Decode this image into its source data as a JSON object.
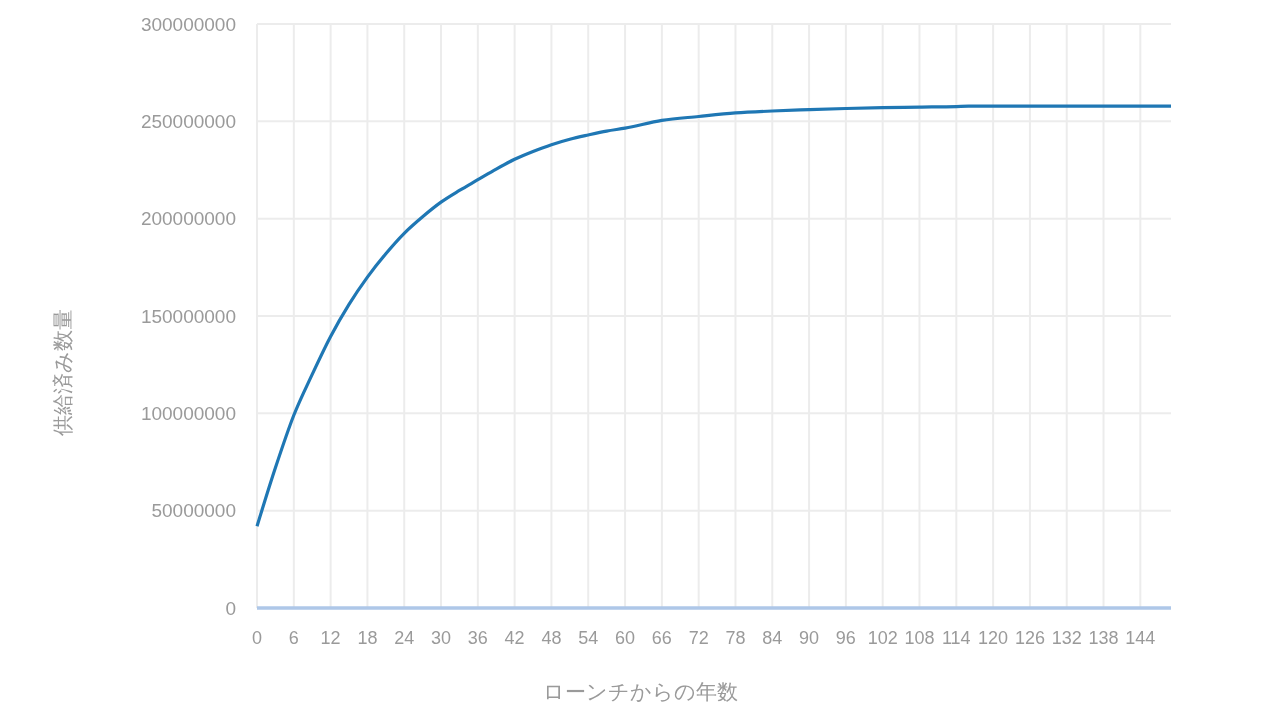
{
  "chart_data": {
    "type": "line",
    "xlabel": "ローンチからの年数",
    "ylabel": "供給済み数量",
    "x": [
      0,
      3,
      6,
      9,
      12,
      15,
      18,
      21,
      24,
      27,
      30,
      33,
      36,
      39,
      42,
      45,
      48,
      51,
      54,
      57,
      60,
      66,
      72,
      78,
      84,
      90,
      96,
      102,
      108,
      114,
      116,
      149
    ],
    "series": [
      {
        "color": "#1f77b4",
        "values": [
          42000000,
          72000000,
          99000000,
          120000000,
          139500000,
          156000000,
          170000000,
          182000000,
          192500000,
          201000000,
          208500000,
          214500000,
          220000000,
          225500000,
          230500000,
          234500000,
          238000000,
          240800000,
          243000000,
          245000000,
          246500000,
          250500000,
          252500000,
          254300000,
          255300000,
          256000000,
          256600000,
          257000000,
          257300000,
          257600000,
          257800000,
          257800000
        ]
      },
      {
        "color": "#aec7e8",
        "x": [
          0,
          149
        ],
        "values": [
          0,
          0
        ]
      }
    ],
    "xlim": [
      0,
      149
    ],
    "xticks": [
      0,
      6,
      12,
      18,
      24,
      30,
      36,
      42,
      48,
      54,
      60,
      66,
      72,
      78,
      84,
      90,
      96,
      102,
      108,
      114,
      120,
      126,
      132,
      138,
      144
    ],
    "ylim": [
      0,
      300000000
    ],
    "yticks": [
      0,
      50000000,
      100000000,
      150000000,
      200000000,
      250000000,
      300000000
    ],
    "grid": true
  }
}
